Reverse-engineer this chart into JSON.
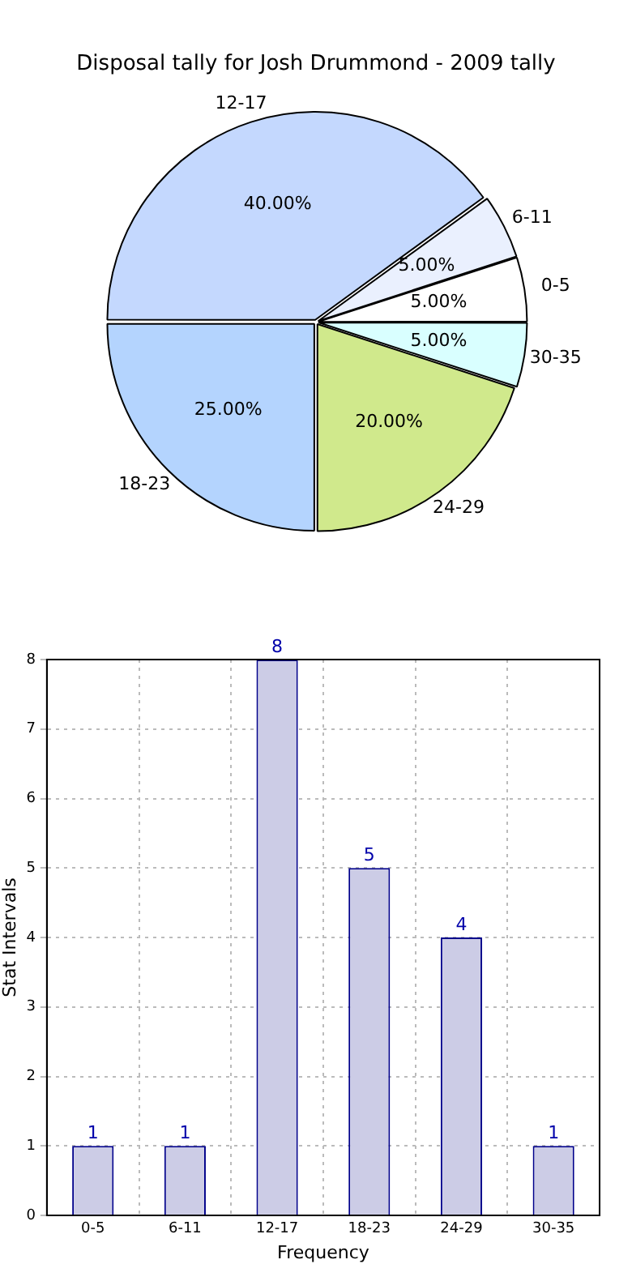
{
  "chart_data": [
    {
      "type": "pie",
      "title": "Disposal tally for Josh Drummond - 2009 tally",
      "categories": [
        "30-35",
        "24-29",
        "18-23",
        "12-17",
        "6-11",
        "0-5"
      ],
      "values": [
        5,
        20,
        25,
        40,
        5,
        5
      ],
      "colors": [
        "#d9ffff",
        "#d0e98c",
        "#b4d4fe",
        "#c4d8fe",
        "#eaf0fe",
        "#ffffff"
      ],
      "value_labels": [
        "5.00%",
        "20.00%",
        "25.00%",
        "40.00%",
        "5.00%",
        "5.00%"
      ],
      "legend": false
    },
    {
      "type": "bar",
      "xlabel": "Frequency",
      "ylabel": "Stat Intervals",
      "categories": [
        "0-5",
        "6-11",
        "12-17",
        "18-23",
        "24-29",
        "30-35"
      ],
      "values": [
        1,
        1,
        8,
        5,
        4,
        1
      ],
      "color": "#ccccE6",
      "ylim": [
        0,
        8
      ],
      "yticks": [
        0,
        1,
        2,
        3,
        4,
        5,
        6,
        7,
        8
      ],
      "grid": true,
      "data_labels": true,
      "legend": false
    }
  ]
}
